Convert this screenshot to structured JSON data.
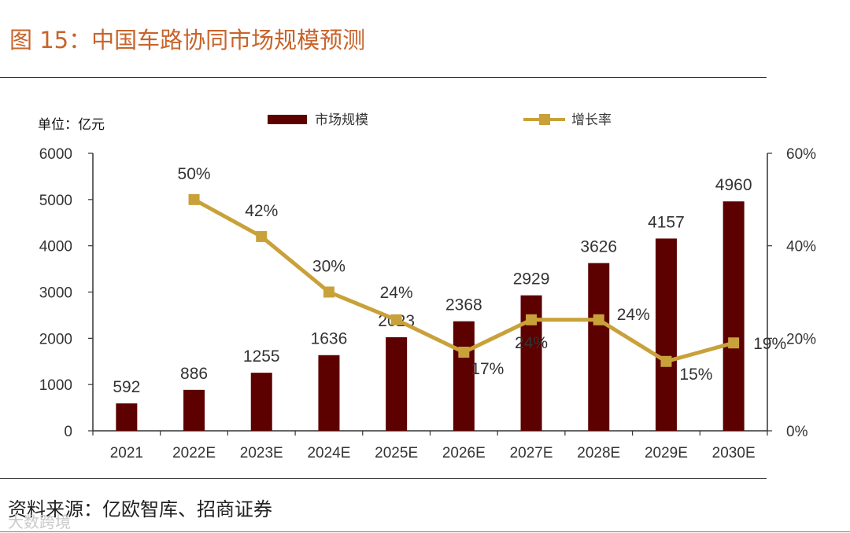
{
  "figure": {
    "title": "图 15：中国车路协同市场规模预测",
    "source": "资料来源：亿欧智库、招商证券",
    "watermark": "大数跨境"
  },
  "colors": {
    "title": "#C8642B",
    "bar": "#5C0000",
    "line": "#C9A13A"
  },
  "chart_data": {
    "type": "bar",
    "unit_label": "单位：亿元",
    "categories": [
      "2021",
      "2022E",
      "2023E",
      "2024E",
      "2025E",
      "2026E",
      "2027E",
      "2028E",
      "2029E",
      "2030E"
    ],
    "series": [
      {
        "name": "市场规模",
        "type": "bar",
        "axis": "left",
        "values": [
          592,
          886,
          1255,
          1636,
          2023,
          2368,
          2929,
          3626,
          4157,
          4960
        ],
        "labels": [
          "592",
          "886",
          "1255",
          "1636",
          "2023",
          "2368",
          "2929",
          "3626",
          "4157",
          "4960"
        ]
      },
      {
        "name": "增长率",
        "type": "line",
        "axis": "right",
        "values": [
          null,
          50,
          42,
          30,
          24,
          17,
          24,
          24,
          15,
          19
        ],
        "labels": [
          "",
          "50%",
          "42%",
          "30%",
          "24%",
          "17%",
          "24%",
          "24%",
          "15%",
          "19%"
        ]
      }
    ],
    "y_left": {
      "min": 0,
      "max": 6000,
      "ticks": [
        "0",
        "1000",
        "2000",
        "3000",
        "4000",
        "5000",
        "6000"
      ]
    },
    "y_right": {
      "min": 0,
      "max": 60,
      "ticks": [
        "0%",
        "20%",
        "40%",
        "60%"
      ]
    },
    "legend": "top",
    "grid": false
  }
}
